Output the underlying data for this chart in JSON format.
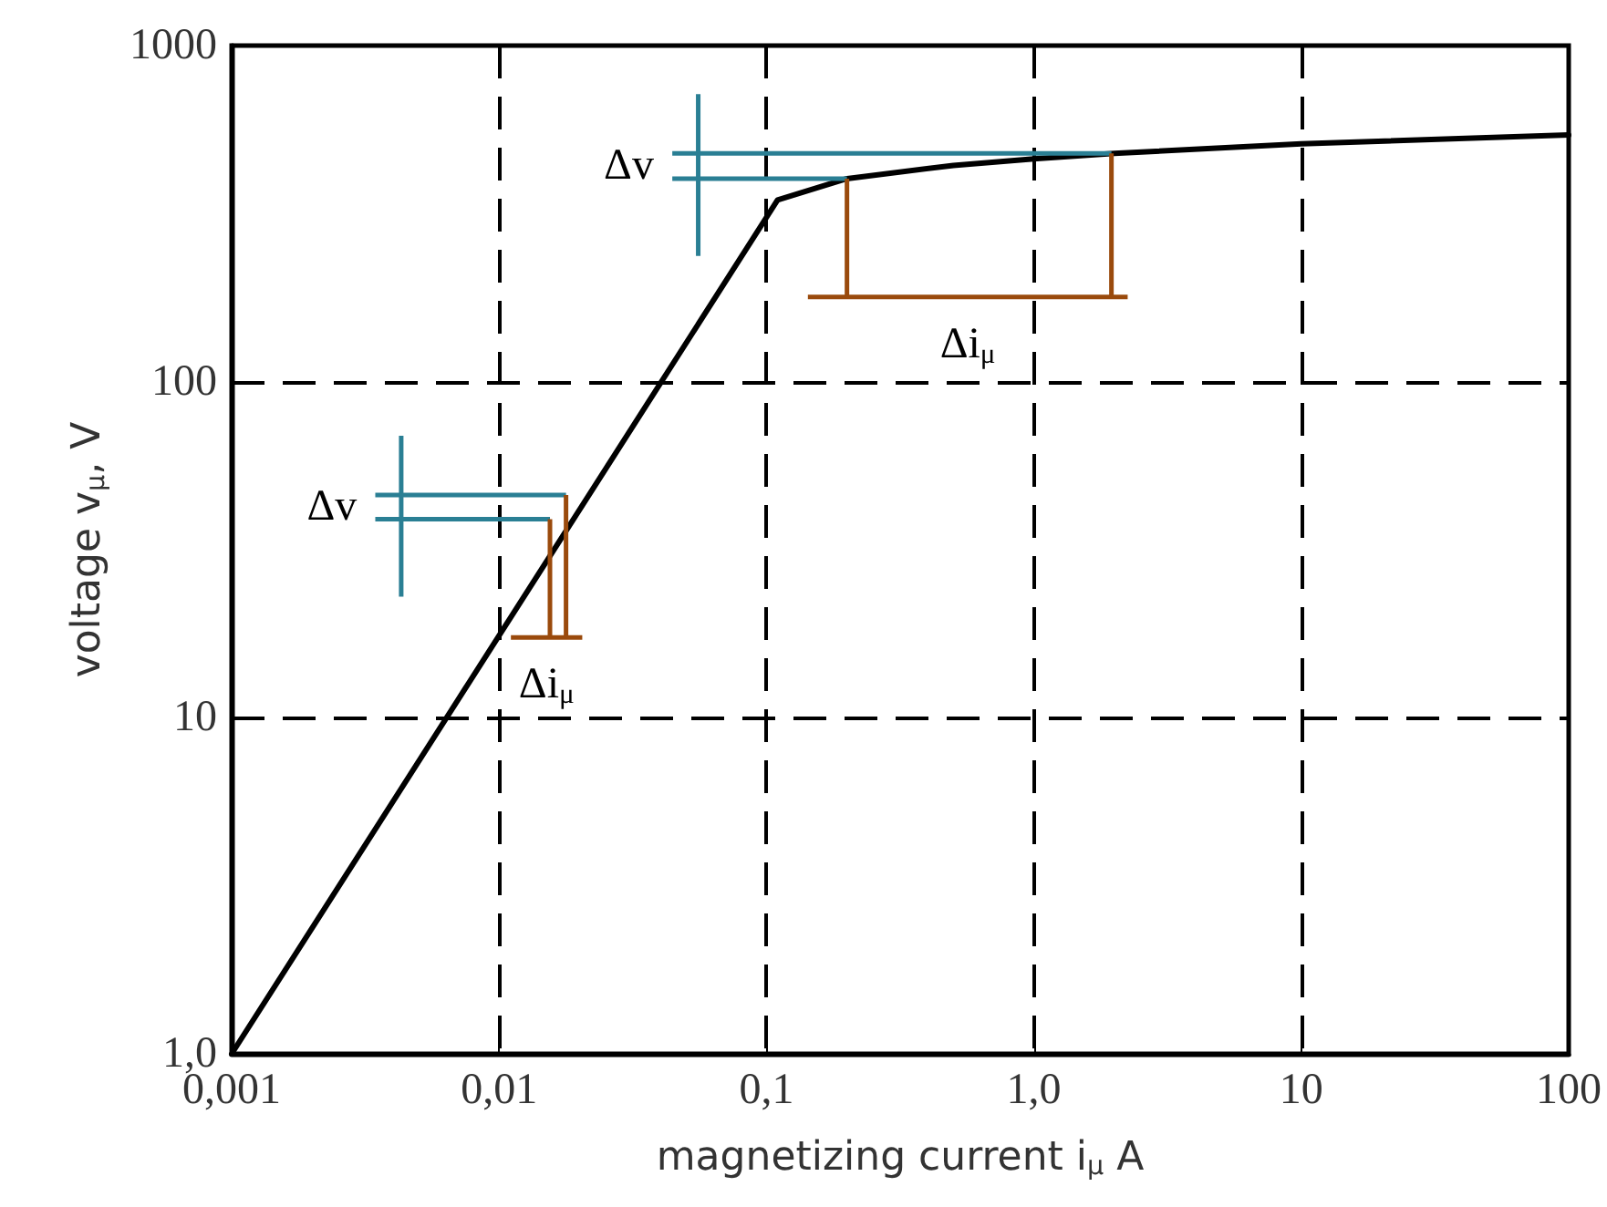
{
  "chart_data": {
    "type": "line",
    "xlabel": "magnetizing current i$_{μ}$ A",
    "ylabel": "voltage v$_{μ}$, V",
    "x": [
      0.001,
      0.11,
      0.2,
      0.5,
      1,
      2,
      10,
      100
    ],
    "series": [
      {
        "color": "#000000",
        "values": [
          1,
          347,
          402,
          440,
          460,
          478,
          510,
          542
        ]
      }
    ],
    "log": "xy",
    "xlim": [
      0.001,
      100
    ],
    "ylim": [
      1,
      1000
    ],
    "xticks": [
      {
        "value": 0.001,
        "label": "0,001"
      },
      {
        "value": 0.01,
        "label": "0,01"
      },
      {
        "value": 0.1,
        "label": "0,1"
      },
      {
        "value": 1,
        "label": "1,0"
      },
      10,
      100
    ],
    "yticks": [
      {
        "value": 1,
        "label": "1,0"
      },
      10,
      100,
      1000
    ],
    "grid": true,
    "marker": "none",
    "line_style": "solid",
    "annotations": [
      "Δv",
      "Δi$_{μ}$",
      {
        "text": "Δv",
        "x": 1.95,
        "y": 478
      },
      "Δi$_{μ}$"
    ]
  }
}
